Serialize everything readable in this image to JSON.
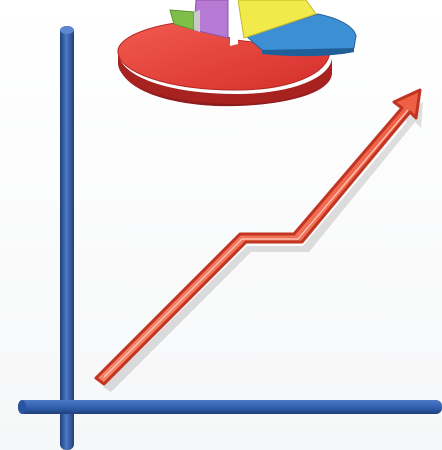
{
  "illustration": {
    "subject": "growth-chart-clipart",
    "colors": {
      "background": "#ffffff",
      "axis": "#2f5fae",
      "axis_dark": "#1f3f7a",
      "arrow_fill": "#f06b4f",
      "arrow_outline": "#c23422",
      "pie_red": "#e53a35",
      "pie_red_dark": "#9c1f22",
      "pie_yellow": "#f2e94a",
      "pie_blue": "#3d8fd3",
      "pie_green": "#7fbf49",
      "pie_purple": "#b77ad4"
    }
  }
}
